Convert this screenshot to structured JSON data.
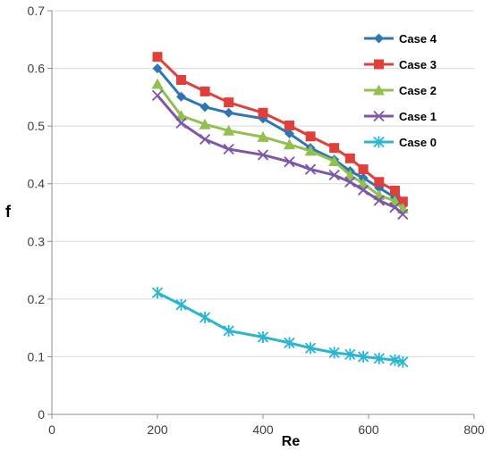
{
  "chart_data": {
    "type": "line",
    "xlabel": "Re",
    "ylabel": "f",
    "xlim": [
      0,
      800
    ],
    "ylim": [
      0,
      0.7
    ],
    "x_ticks": [
      0,
      200,
      400,
      600,
      800
    ],
    "y_ticks": [
      0,
      0.1,
      0.2,
      0.3,
      0.4,
      0.5,
      0.6,
      0.7
    ],
    "grid": "horizontal",
    "legend_position": "top-right",
    "series": [
      {
        "name": "Case 4",
        "color": "#2e75b6",
        "marker": "diamond",
        "x": [
          200,
          245,
          290,
          335,
          400,
          450,
          490,
          535,
          565,
          590,
          620,
          650,
          665
        ],
        "y": [
          0.6,
          0.551,
          0.533,
          0.523,
          0.513,
          0.487,
          0.462,
          0.442,
          0.422,
          0.41,
          0.393,
          0.376,
          0.362
        ]
      },
      {
        "name": "Case 3",
        "color": "#e0403c",
        "marker": "square",
        "x": [
          200,
          245,
          290,
          335,
          400,
          450,
          490,
          535,
          565,
          590,
          620,
          650,
          665
        ],
        "y": [
          0.62,
          0.58,
          0.56,
          0.541,
          0.523,
          0.501,
          0.482,
          0.462,
          0.444,
          0.425,
          0.403,
          0.388,
          0.369
        ]
      },
      {
        "name": "Case 2",
        "color": "#92c04e",
        "marker": "triangle",
        "x": [
          200,
          245,
          290,
          335,
          400,
          450,
          490,
          535,
          565,
          590,
          620,
          650,
          665
        ],
        "y": [
          0.573,
          0.518,
          0.503,
          0.492,
          0.481,
          0.468,
          0.457,
          0.439,
          0.415,
          0.4,
          0.38,
          0.37,
          0.357
        ]
      },
      {
        "name": "Case 1",
        "color": "#7e57a8",
        "marker": "x",
        "x": [
          200,
          245,
          290,
          335,
          400,
          450,
          490,
          535,
          565,
          590,
          620,
          650,
          665
        ],
        "y": [
          0.553,
          0.505,
          0.477,
          0.46,
          0.45,
          0.438,
          0.425,
          0.415,
          0.403,
          0.389,
          0.371,
          0.359,
          0.347
        ]
      },
      {
        "name": "Case 0",
        "color": "#29b5d3",
        "marker": "asterisk",
        "x": [
          200,
          245,
          290,
          335,
          400,
          450,
          490,
          535,
          565,
          590,
          620,
          650,
          665
        ],
        "y": [
          0.211,
          0.19,
          0.168,
          0.145,
          0.134,
          0.124,
          0.115,
          0.107,
          0.104,
          0.1,
          0.097,
          0.094,
          0.091
        ]
      }
    ]
  }
}
